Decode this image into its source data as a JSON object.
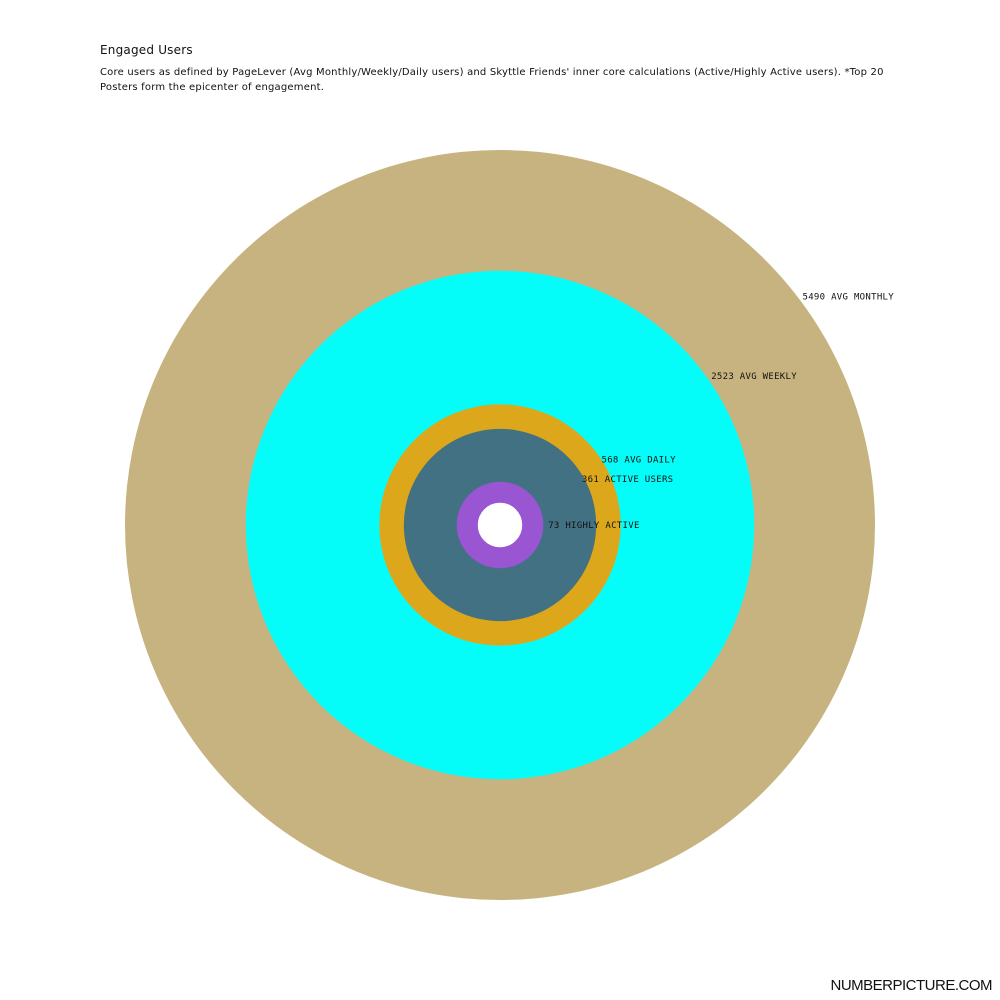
{
  "chart_data": {
    "type": "nested-circles",
    "title": "Engaged Users",
    "subtitle": "Core users as defined by PageLever (Avg Monthly/Weekly/Daily users) and Skyttle Friends' inner core calculations (Active/Highly Active users).  *Top 20 Posters form the epicenter of engagement.",
    "series": [
      {
        "name": "AVG MONTHLY",
        "value": 5490,
        "label": "5490 AVG MONTHLY",
        "color": "#c7b37f"
      },
      {
        "name": "AVG WEEKLY",
        "value": 2523,
        "label": "2523 AVG WEEKLY",
        "color": "#05fdf9"
      },
      {
        "name": "AVG DAILY",
        "value": 568,
        "label": "568 AVG DAILY",
        "color": "#dca71a"
      },
      {
        "name": "ACTIVE USERS",
        "value": 361,
        "label": "361 ACTIVE USERS",
        "color": "#427183"
      },
      {
        "name": "HIGHLY ACTIVE",
        "value": 73,
        "label": "73 HIGHLY ACTIVE",
        "color": "#9a55d2"
      },
      {
        "name": "TOP 20 POSTERS",
        "value": 20,
        "label": "",
        "color": "#ffffff"
      }
    ]
  },
  "brand": "NUMBERPICTURE.COM"
}
